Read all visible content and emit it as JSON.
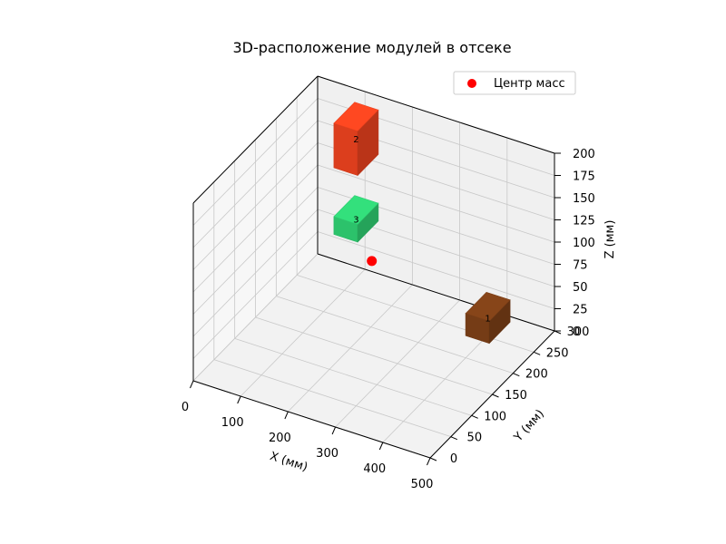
{
  "chart_data": {
    "type": "scatter3d",
    "title": "3D-расположение модулей в отсеке",
    "xlabel": "X (мм)",
    "ylabel": "Y (мм)",
    "zlabel": "Z (мм)",
    "xlim": [
      0,
      500
    ],
    "ylim": [
      0,
      300
    ],
    "zlim": [
      0,
      200
    ],
    "xticks": [
      "0",
      "100",
      "200",
      "300",
      "400",
      "500"
    ],
    "yticks": [
      "0",
      "50",
      "100",
      "150",
      "200",
      "250",
      "300"
    ],
    "zticks": [
      "0",
      "25",
      "50",
      "75",
      "100",
      "125",
      "150",
      "175",
      "200"
    ],
    "grid": true,
    "legend_position": "top-right",
    "legend": [
      {
        "label": "Центр масс",
        "marker": "circle",
        "color": "#ff0000"
      }
    ],
    "modules": [
      {
        "label": "1",
        "x": 400,
        "y": 200,
        "z": 25,
        "dx": 50,
        "dy": 50,
        "dz": 25,
        "color": "#7b3f17"
      },
      {
        "label": "2",
        "x": 100,
        "y": 225,
        "z": 150,
        "dx": 50,
        "dy": 50,
        "dz": 50,
        "color": "#e8411e"
      },
      {
        "label": "3",
        "x": 100,
        "y": 225,
        "z": 75,
        "dx": 50,
        "dy": 50,
        "dz": 20,
        "color": "#2ecc71"
      }
    ],
    "center_of_mass": {
      "x": 194,
      "y": 209,
      "z": 69,
      "color": "#ff0000"
    }
  }
}
